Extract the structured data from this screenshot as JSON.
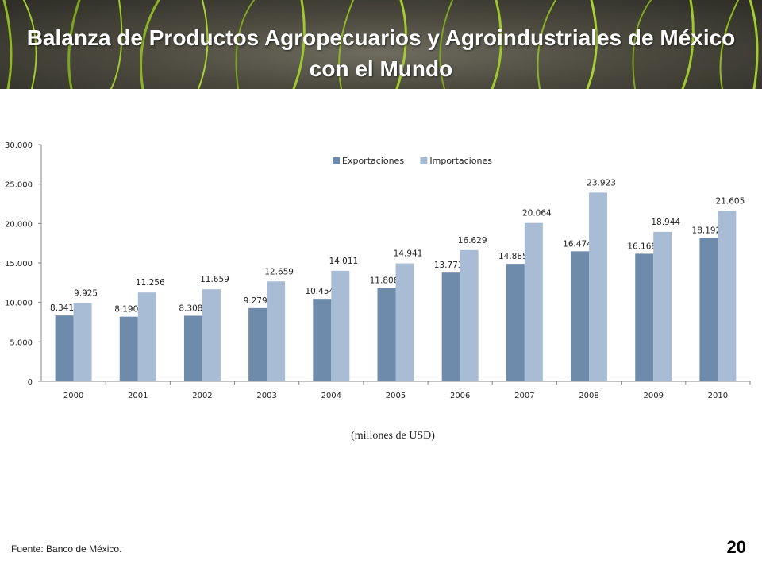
{
  "header": {
    "title": "Balanza de Productos Agropecuarios y Agroindustriales de México con el Mundo"
  },
  "chart_data": {
    "type": "bar",
    "categories": [
      "2000",
      "2001",
      "2002",
      "2003",
      "2004",
      "2005",
      "2006",
      "2007",
      "2008",
      "2009",
      "2010"
    ],
    "series": [
      {
        "name": "Exportaciones",
        "color": "#6f8bac",
        "values": [
          8341,
          8190,
          8308,
          9279,
          10454,
          11806,
          13773,
          14885,
          16474,
          16168,
          18192
        ],
        "labels": [
          "8.341",
          "8.190",
          "8.308",
          "9.279",
          "10.454",
          "11.806",
          "13.773",
          "14.885",
          "16.474",
          "16.168",
          "18.192"
        ]
      },
      {
        "name": "Importaciones",
        "color": "#a9bcd6",
        "values": [
          9925,
          11256,
          11659,
          12659,
          14011,
          14941,
          16629,
          20064,
          23923,
          18944,
          21605
        ],
        "labels": [
          "9.925",
          "11.256",
          "11.659",
          "12.659",
          "14.011",
          "14.941",
          "16.629",
          "20.064",
          "23.923",
          "18.944",
          "21.605"
        ]
      }
    ],
    "ylim": [
      0,
      30000
    ],
    "yticks": [
      0,
      5000,
      10000,
      15000,
      20000,
      25000,
      30000
    ],
    "ytick_labels": [
      "0",
      "5.000",
      "10.000",
      "15.000",
      "20.000",
      "25.000",
      "30.000"
    ],
    "grid": false,
    "legend": "top-center",
    "unit_note": "(millones de USD)"
  },
  "footer": {
    "source": "Fuente: Banco de México.",
    "page": "20"
  }
}
